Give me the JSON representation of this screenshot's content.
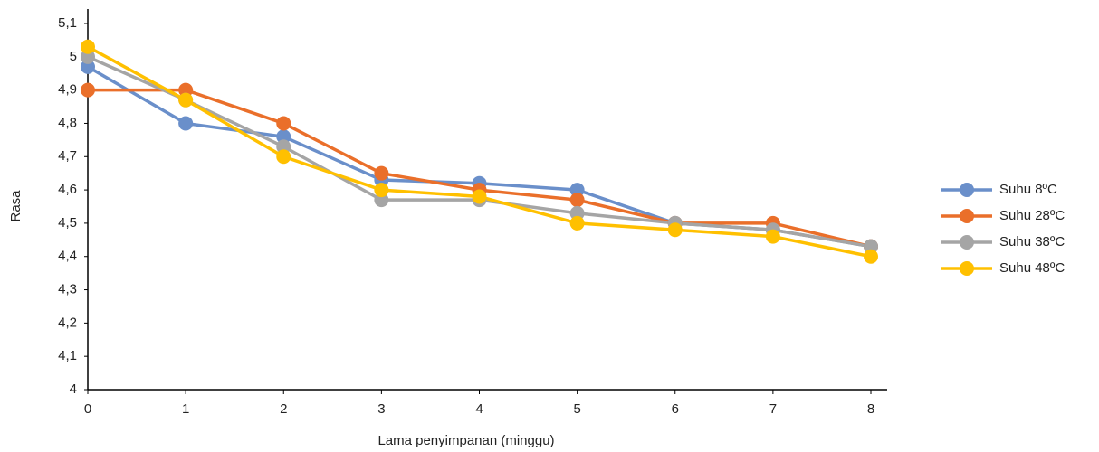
{
  "chart_data": {
    "type": "line",
    "y_label": "Rasa",
    "x_label": "Lama penyimpanan (minggu)",
    "x": [
      0,
      1,
      2,
      3,
      4,
      5,
      6,
      7,
      8
    ],
    "xlim": [
      0,
      8
    ],
    "xticks": [
      0,
      1,
      2,
      3,
      4,
      5,
      6,
      7,
      8
    ],
    "ylim": [
      4,
      5.1
    ],
    "yticks": [
      4,
      {
        "value": 4.1,
        "label": "4,1"
      },
      {
        "value": 4.2,
        "label": "4,2"
      },
      {
        "value": 4.3,
        "label": "4,3"
      },
      {
        "value": 4.4,
        "label": "4,4"
      },
      {
        "value": 4.5,
        "label": "4,5"
      },
      {
        "value": 4.6,
        "label": "4,6"
      },
      {
        "value": 4.7,
        "label": "4,7"
      },
      {
        "value": 4.8,
        "label": "4,8"
      },
      {
        "value": 4.9,
        "label": "4,9"
      },
      5,
      {
        "value": 5.1,
        "label": "5,1"
      }
    ],
    "grid": false,
    "legend": "right",
    "series": [
      {
        "name": "Suhu 8ºC",
        "color": "#6a8fca",
        "values": [
          4.97,
          4.8,
          4.76,
          4.63,
          4.62,
          4.6,
          4.5,
          4.48,
          4.43
        ]
      },
      {
        "name": "Suhu 28ºC",
        "color": "#ea6f2a",
        "values": [
          4.9,
          4.9,
          4.8,
          4.65,
          4.6,
          4.57,
          4.5,
          4.5,
          4.43
        ]
      },
      {
        "name": "Suhu 38ºC",
        "color": "#a5a5a5",
        "values": [
          5.0,
          4.87,
          4.73,
          4.57,
          4.57,
          4.53,
          4.5,
          4.48,
          4.43
        ]
      },
      {
        "name": "Suhu 48ºC",
        "color": "#ffc000",
        "values": [
          5.03,
          4.87,
          4.7,
          4.6,
          4.58,
          4.5,
          4.48,
          4.46,
          4.4
        ]
      }
    ]
  }
}
